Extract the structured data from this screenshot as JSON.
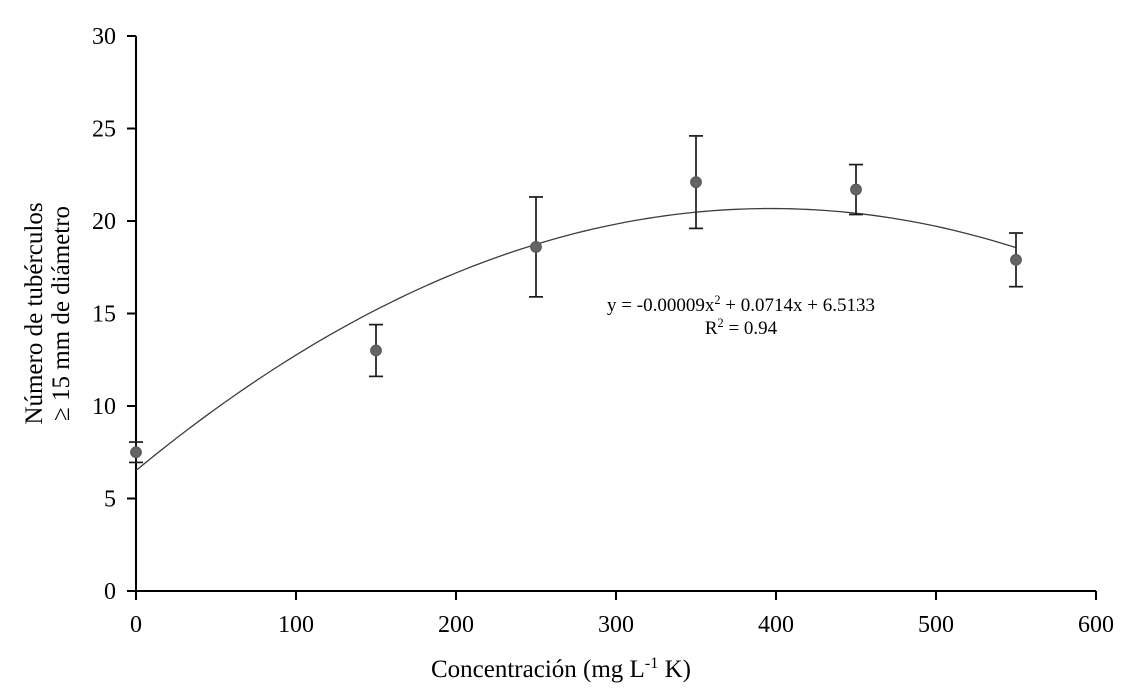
{
  "figure": {
    "background": "#ffffff"
  },
  "chart_data": {
    "type": "scatter",
    "title": "",
    "xlabel_plain": "Concentración (mg L-1 K)",
    "xlabel_segments": [
      {
        "t": "Concentración (mg L"
      },
      {
        "t": "-1",
        "sup": true
      },
      {
        "t": " K)"
      }
    ],
    "ylabel_lines": [
      "Número de tubérculos",
      "≥ 15 mm de diámetro"
    ],
    "xlim": [
      0,
      600
    ],
    "ylim": [
      0,
      30
    ],
    "xticks": [
      0,
      100,
      200,
      300,
      400,
      500,
      600
    ],
    "yticks": [
      0,
      5,
      10,
      15,
      20,
      25,
      30
    ],
    "grid": false,
    "legend": "none",
    "series": [
      {
        "name": "observed-means",
        "marker": "circle",
        "points": [
          {
            "x": 0,
            "y": 7.5,
            "err": 0.55
          },
          {
            "x": 150,
            "y": 13.0,
            "err": 1.4
          },
          {
            "x": 250,
            "y": 18.6,
            "err": 2.7
          },
          {
            "x": 350,
            "y": 22.1,
            "err": 2.5
          },
          {
            "x": 450,
            "y": 21.7,
            "err": 1.35
          },
          {
            "x": 550,
            "y": 17.9,
            "err": 1.45
          }
        ]
      }
    ],
    "fit_curve": {
      "coefficients": {
        "a": -9e-05,
        "b": 0.0714,
        "c": 6.5133
      },
      "r_squared": 0.94,
      "x_domain": [
        0,
        550
      ],
      "equation_segments": [
        {
          "t": "y = -0.00009x"
        },
        {
          "t": "2",
          "sup": true
        },
        {
          "t": " + 0.0714x + 6.5133"
        }
      ],
      "r2_segments": [
        {
          "t": "R"
        },
        {
          "t": "2",
          "sup": true
        },
        {
          "t": " = 0.94"
        }
      ]
    },
    "colors": {
      "marker_fill": "#646464",
      "marker_stroke": "#575757",
      "error_bar": "#1b1b1b",
      "curve": "#3d3d3d",
      "axis": "#000000",
      "text": "#000000"
    }
  }
}
